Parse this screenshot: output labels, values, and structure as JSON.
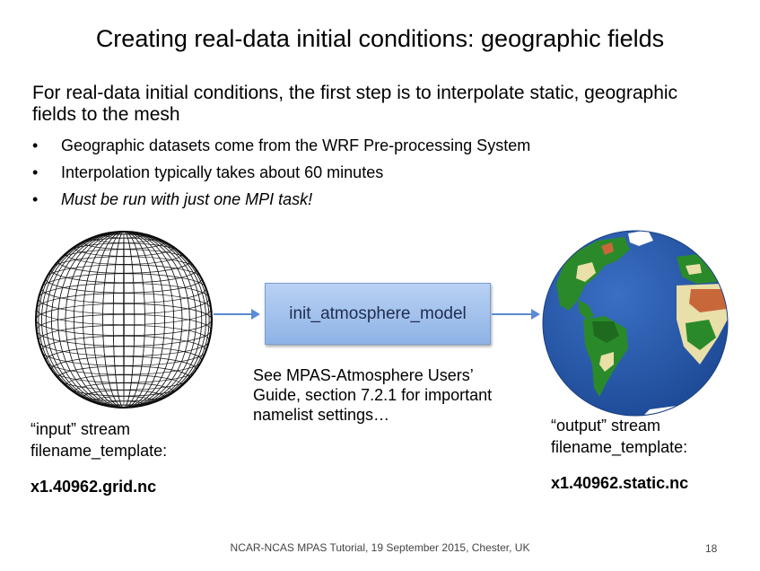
{
  "slide": {
    "title": "Creating real-data initial conditions: geographic fields",
    "intro": "For real-data initial conditions, the first step is to interpolate static, geographic fields to the mesh",
    "bullets": [
      "Geographic datasets come from the WRF Pre-processing System",
      "Interpolation typically takes about 60 minutes",
      "Must be run with just one MPI task!"
    ],
    "bullet_symbol": "•",
    "program_box": "init_atmosphere_model",
    "note": "See MPAS-Atmosphere Users’ Guide, section 7.2.1 for important namelist settings…",
    "input": {
      "line1": "“input” stream",
      "line2": "filename_template:",
      "filename": "x1.40962.grid.nc"
    },
    "output": {
      "line1": "“output” stream",
      "line2": "filename_template:",
      "filename": "x1.40962.static.nc"
    },
    "footer": "NCAR-NCAS MPAS Tutorial, 19 September 2015, Chester, UK",
    "page_number": "18",
    "colors": {
      "arrow": "#5b8ad6",
      "box_fill": "#a4c2ec",
      "ocean": "#2456a8",
      "land_green": "#2a8a2a",
      "desert": "#e9dfa8",
      "soil": "#c8683a",
      "ice": "#ffffff"
    }
  }
}
